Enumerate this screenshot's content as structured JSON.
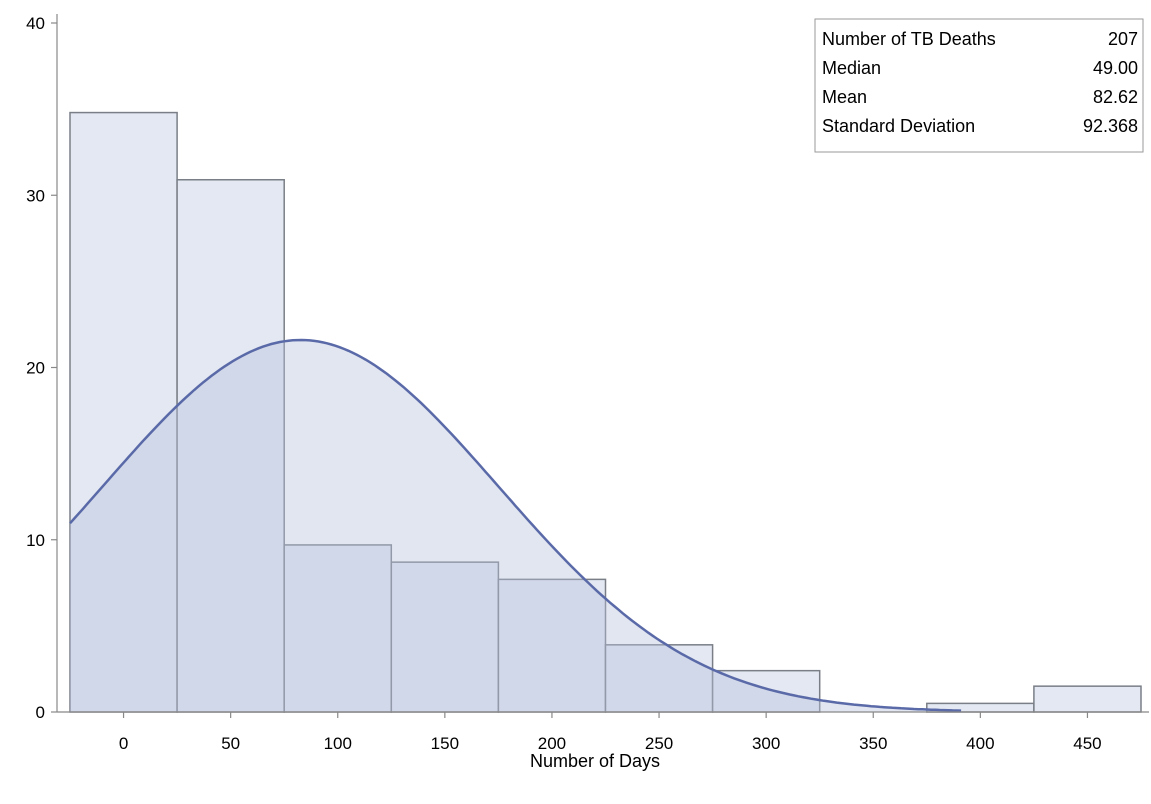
{
  "chart_data": {
    "type": "bar",
    "title": "",
    "xlabel": "Number of Days",
    "ylabel": "",
    "xlim": [
      -25,
      475
    ],
    "ylim": [
      0,
      40
    ],
    "x_ticks": [
      0,
      50,
      100,
      150,
      200,
      250,
      300,
      350,
      400,
      450
    ],
    "y_ticks": [
      0,
      10,
      20,
      30,
      40
    ],
    "bin_width": 50,
    "bins": [
      {
        "center": 0,
        "value": 34.8
      },
      {
        "center": 50,
        "value": 30.9
      },
      {
        "center": 100,
        "value": 9.7
      },
      {
        "center": 150,
        "value": 8.7
      },
      {
        "center": 200,
        "value": 7.7
      },
      {
        "center": 250,
        "value": 3.9
      },
      {
        "center": 300,
        "value": 2.4
      },
      {
        "center": 350,
        "value": 0
      },
      {
        "center": 400,
        "value": 0.5
      },
      {
        "center": 450,
        "value": 1.5
      }
    ],
    "normal_curve": {
      "mean": 82.62,
      "sd": 92.368,
      "x_start": -25,
      "x_end": 392
    },
    "grid": false,
    "legend": "none",
    "colors": {
      "bar_fill": "#e3e8f2",
      "bar_stroke": "#7a7f87",
      "curve_fill": "#b7c1dc",
      "curve_line": "#5a6aa8",
      "axis": "#888888"
    },
    "stats_box": {
      "placement": "top-right",
      "rows": [
        {
          "label": "Number of TB Deaths",
          "value": "207"
        },
        {
          "label": "Median",
          "value": "49.00"
        },
        {
          "label": "Mean",
          "value": "82.62"
        },
        {
          "label": "Standard Deviation",
          "value": "92.368"
        }
      ]
    }
  }
}
